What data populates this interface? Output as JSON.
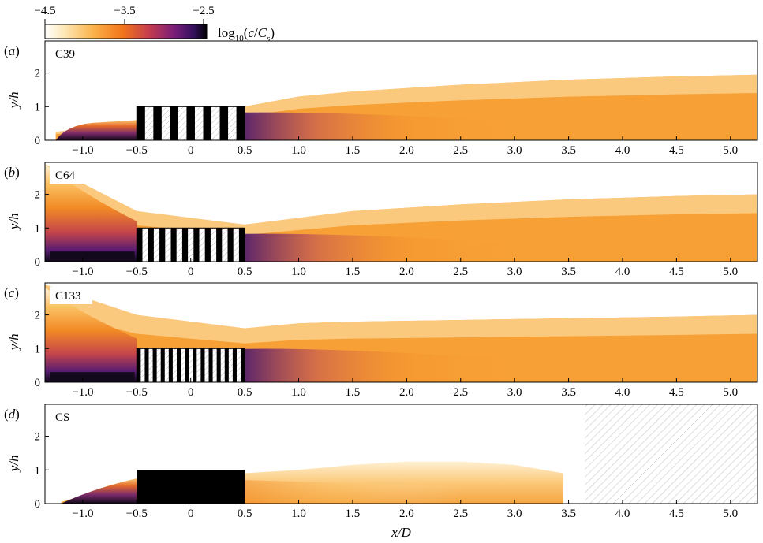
{
  "colorbar": {
    "ticks": [
      "−4.5",
      "−3.5",
      "−2.5"
    ],
    "label": "log10(c/Cs)",
    "colors": [
      "#ffffff",
      "#fde8b6",
      "#fcb24a",
      "#f1741a",
      "#c63d4d",
      "#7a1e7a",
      "#32105c",
      "#000004"
    ]
  },
  "chart_data": [
    {
      "type": "heatmap",
      "panel_label": "(a)",
      "case": "C39",
      "xlabel": "",
      "ylabel": "y/h",
      "xlim": [
        -1.35,
        5.25
      ],
      "ylim": [
        0,
        2.95
      ],
      "x_ticks": [
        "−1.0",
        "−0.5",
        "0",
        "0.5",
        "1.0",
        "1.5",
        "2.0",
        "2.5",
        "3.0",
        "3.5",
        "4.0",
        "4.5",
        "5.0"
      ],
      "y_ticks": [
        "0",
        "1",
        "2"
      ],
      "obstacle": {
        "x_range": [
          -0.5,
          0.5
        ],
        "height": 1,
        "stripes": 7,
        "solid": false
      },
      "plume_envelope": {
        "x": [
          -1.25,
          -0.5,
          0.5,
          1.0,
          1.5,
          2.5,
          3.5,
          4.5,
          5.25
        ],
        "y_top": [
          0.25,
          0.55,
          1.0,
          1.3,
          1.45,
          1.65,
          1.8,
          1.9,
          1.95
        ]
      }
    },
    {
      "type": "heatmap",
      "panel_label": "(b)",
      "case": "C64",
      "xlabel": "",
      "ylabel": "y/h",
      "xlim": [
        -1.35,
        5.25
      ],
      "ylim": [
        0,
        2.95
      ],
      "x_ticks": [
        "−1.0",
        "−0.5",
        "0",
        "0.5",
        "1.0",
        "1.5",
        "2.0",
        "2.5",
        "3.0",
        "3.5",
        "4.0",
        "4.5",
        "5.0"
      ],
      "y_ticks": [
        "0",
        "1",
        "2"
      ],
      "obstacle": {
        "x_range": [
          -0.5,
          0.5
        ],
        "height": 1,
        "stripes": 10,
        "solid": false
      },
      "plume_envelope": {
        "x": [
          -1.35,
          -0.5,
          0.5,
          1.0,
          1.5,
          2.5,
          3.5,
          4.5,
          5.25
        ],
        "y_top": [
          2.9,
          1.5,
          1.1,
          1.3,
          1.5,
          1.7,
          1.85,
          1.95,
          2.0
        ]
      }
    },
    {
      "type": "heatmap",
      "panel_label": "(c)",
      "case": "C133",
      "xlabel": "",
      "ylabel": "y/h",
      "xlim": [
        -1.35,
        5.25
      ],
      "ylim": [
        0,
        2.95
      ],
      "x_ticks": [
        "−1.0",
        "−0.5",
        "0",
        "0.5",
        "1.0",
        "1.5",
        "2.0",
        "2.5",
        "3.0",
        "3.5",
        "4.0",
        "4.5",
        "5.0"
      ],
      "y_ticks": [
        "0",
        "1",
        "2"
      ],
      "obstacle": {
        "x_range": [
          -0.5,
          0.5
        ],
        "height": 1,
        "stripes": 14,
        "solid": false
      },
      "plume_envelope": {
        "x": [
          -1.35,
          -0.5,
          0.5,
          1.0,
          1.5,
          2.5,
          3.5,
          4.5,
          5.25
        ],
        "y_top": [
          2.9,
          2.0,
          1.6,
          1.75,
          1.8,
          1.85,
          1.9,
          1.95,
          2.0
        ]
      }
    },
    {
      "type": "heatmap",
      "panel_label": "(d)",
      "case": "CS",
      "xlabel": "x/D",
      "ylabel": "y/h",
      "xlim": [
        -1.35,
        5.25
      ],
      "ylim": [
        0,
        2.95
      ],
      "x_ticks": [
        "−1.0",
        "−0.5",
        "0",
        "0.5",
        "1.0",
        "1.5",
        "2.0",
        "2.5",
        "3.0",
        "3.5",
        "4.0",
        "4.5",
        "5.0"
      ],
      "y_ticks": [
        "0",
        "1",
        "2"
      ],
      "obstacle": {
        "x_range": [
          -0.5,
          0.5
        ],
        "height": 1,
        "stripes": 0,
        "solid": true
      },
      "masked_region": {
        "x_range": [
          3.65,
          5.25
        ]
      },
      "plume_envelope": {
        "x": [
          -1.2,
          -0.5,
          0.5,
          1.0,
          1.5,
          2.0,
          2.5,
          3.0,
          3.45
        ],
        "y_top": [
          0.05,
          0.7,
          0.9,
          1.0,
          1.15,
          1.25,
          1.25,
          1.15,
          0.9
        ]
      }
    }
  ]
}
